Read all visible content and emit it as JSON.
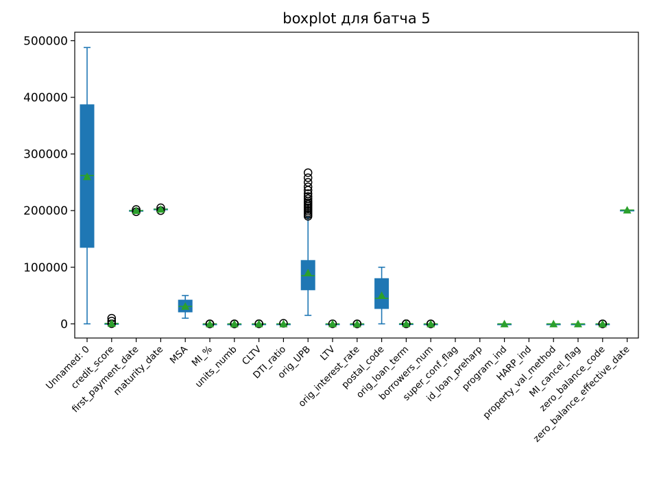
{
  "chart_data": {
    "type": "box",
    "title": "boxplot для батча 5",
    "xlabel": "",
    "ylabel": "",
    "ylim": [
      -25000,
      515000
    ],
    "yticks": [
      0,
      100000,
      200000,
      300000,
      400000,
      500000
    ],
    "ytick_labels": [
      "0",
      "100000",
      "200000",
      "300000",
      "400000",
      "500000"
    ],
    "grid": false,
    "colors": {
      "box": "#1f77b4",
      "mean_marker": "#2ca02c",
      "outlier": "#000000",
      "median": "#2ca02c"
    },
    "categories": [
      "Unnamed: 0",
      "credit_score",
      "first_payment_date",
      "maturity_date",
      "MSA",
      "MI_%",
      "units_numb",
      "CLTV",
      "DTI_ratio",
      "orig_UPB",
      "LTV",
      "orig_interest_rate",
      "postal_code",
      "orig_loan_term",
      "borrowers_num",
      "super_conf_flag",
      "id_loan_preharp",
      "program_ind",
      "HARP_ind",
      "property_val_method",
      "MI_cancel_flag",
      "zero_balance_code",
      "zero_balance_effective_date"
    ],
    "boxes": [
      {
        "whislo": 0,
        "q1": 135000,
        "med": 262000,
        "q3": 387000,
        "whishi": 488000,
        "mean": 260000,
        "fliers": []
      },
      {
        "whislo": 620,
        "q1": 720,
        "med": 760,
        "q3": 790,
        "whishi": 840,
        "mean": 750,
        "fliers": [
          9999,
          5000,
          300
        ]
      },
      {
        "whislo": 199000,
        "q1": 199500,
        "med": 200000,
        "q3": 200500,
        "whishi": 201000,
        "mean": 200000,
        "fliers": [
          198000,
          202000
        ]
      },
      {
        "whislo": 201000,
        "q1": 202000,
        "med": 202500,
        "q3": 203000,
        "whishi": 204000,
        "mean": 202500,
        "fliers": [
          200000,
          205000
        ]
      },
      {
        "whislo": 10000,
        "q1": 21000,
        "med": 31000,
        "q3": 42000,
        "whishi": 50000,
        "mean": 31000,
        "fliers": []
      },
      {
        "whislo": 0,
        "q1": 0,
        "med": 0,
        "q3": 0,
        "whishi": 0,
        "mean": 1,
        "fliers": [
          12,
          25,
          30
        ]
      },
      {
        "whislo": 1,
        "q1": 1,
        "med": 1,
        "q3": 1,
        "whishi": 1,
        "mean": 1,
        "fliers": [
          2,
          3,
          4
        ]
      },
      {
        "whislo": 40,
        "q1": 70,
        "med": 80,
        "q3": 90,
        "whishi": 110,
        "mean": 78,
        "fliers": [
          150,
          200
        ]
      },
      {
        "whislo": 10,
        "q1": 30,
        "med": 38,
        "q3": 45,
        "whishi": 60,
        "mean": 38,
        "fliers": [
          999
        ]
      },
      {
        "whislo": 15000,
        "q1": 60000,
        "med": 85000,
        "q3": 112000,
        "whishi": 188000,
        "mean": 90000,
        "fliers": [
          190000,
          193000,
          196000,
          199000,
          202000,
          205000,
          208000,
          211000,
          214000,
          217000,
          221000,
          225000,
          230000,
          236000,
          242000,
          250000,
          258000,
          267000
        ]
      },
      {
        "whislo": 40,
        "q1": 70,
        "med": 79,
        "q3": 89,
        "whishi": 105,
        "mean": 77,
        "fliers": [
          150
        ]
      },
      {
        "whislo": 4,
        "q1": 6,
        "med": 7,
        "q3": 7.5,
        "whishi": 9,
        "mean": 7,
        "fliers": [
          11,
          3
        ]
      },
      {
        "whislo": 0,
        "q1": 27000,
        "med": 45000,
        "q3": 80000,
        "whishi": 100000,
        "mean": 50000,
        "fliers": []
      },
      {
        "whislo": 300,
        "q1": 360,
        "med": 360,
        "q3": 360,
        "whishi": 360,
        "mean": 340,
        "fliers": [
          180,
          240,
          120
        ]
      },
      {
        "whislo": 1,
        "q1": 1,
        "med": 2,
        "q3": 2,
        "whishi": 2,
        "mean": 2,
        "fliers": [
          3,
          4
        ]
      },
      null,
      null,
      {
        "whislo": 9,
        "q1": 9,
        "med": 9,
        "q3": 9,
        "whishi": 9,
        "mean": 9,
        "fliers": []
      },
      null,
      {
        "whislo": 2,
        "q1": 2,
        "med": 2,
        "q3": 2,
        "whishi": 2,
        "mean": 2,
        "fliers": []
      },
      {
        "whislo": 7,
        "q1": 7,
        "med": 7,
        "q3": 7,
        "whishi": 7,
        "mean": 7,
        "fliers": []
      },
      {
        "whislo": 1,
        "q1": 1,
        "med": 1,
        "q3": 1,
        "whishi": 1,
        "mean": 1,
        "fliers": [
          3,
          9
        ]
      },
      {
        "whislo": 201000,
        "q1": 201000,
        "med": 201000,
        "q3": 201000,
        "whishi": 201000,
        "mean": 201000,
        "fliers": []
      }
    ]
  }
}
